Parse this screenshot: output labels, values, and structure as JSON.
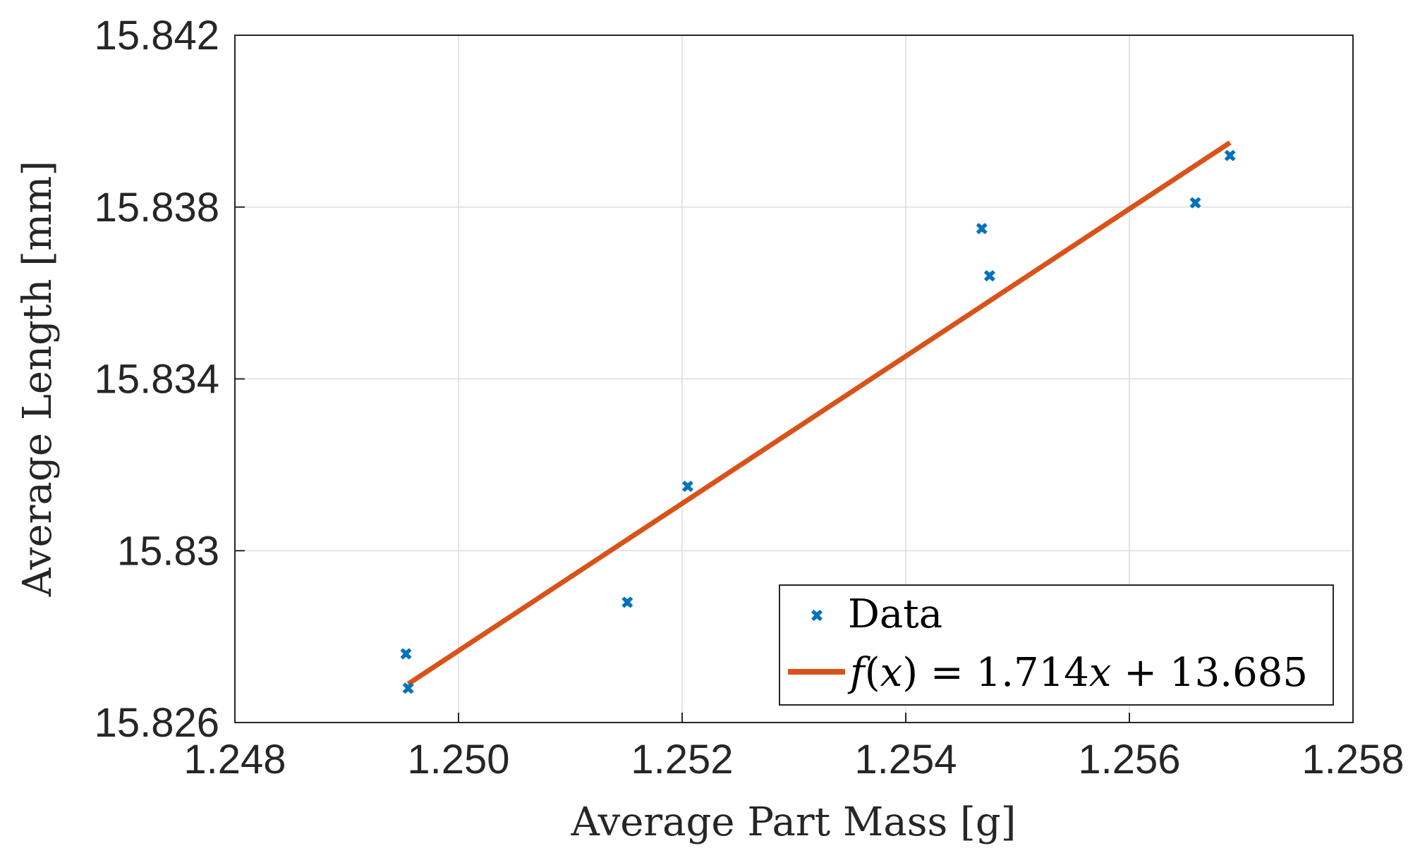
{
  "chart_data": {
    "type": "scatter",
    "title": "",
    "xlabel": "Average Part Mass [g]",
    "ylabel": "Average Length [mm]",
    "xlim": [
      1.248,
      1.258
    ],
    "ylim": [
      15.826,
      15.842
    ],
    "xticks": [
      1.248,
      1.25,
      1.252,
      1.254,
      1.256,
      1.258
    ],
    "xtick_labels": [
      "1.248",
      "1.250",
      "1.252",
      "1.254",
      "1.256",
      "1.258"
    ],
    "yticks": [
      15.826,
      15.83,
      15.834,
      15.838,
      15.842
    ],
    "ytick_labels": [
      "15.826",
      "15.83",
      "15.834",
      "15.838",
      "15.842"
    ],
    "grid": true,
    "legend_position": "bottom-right",
    "series": [
      {
        "name": "Data",
        "kind": "scatter",
        "color": "#0072BD",
        "x": [
          1.24953,
          1.24955,
          1.25151,
          1.25205,
          1.25468,
          1.25475,
          1.25659,
          1.2569
        ],
        "y": [
          15.8276,
          15.8268,
          15.8288,
          15.8315,
          15.8375,
          15.8364,
          15.8381,
          15.8392
        ]
      },
      {
        "name": "f(x) = 1.714x + 13.685",
        "kind": "line",
        "color": "#D95319",
        "x": [
          1.24955,
          1.2569
        ],
        "y": [
          15.8269,
          15.8395
        ]
      }
    ],
    "legend": {
      "data_label": "Data",
      "fit_label": {
        "f": "f",
        "open": "(",
        "x": "x",
        "close": ")",
        "eq": " = 1.714",
        "x2": "x",
        "rest": " + 13.685"
      }
    }
  }
}
